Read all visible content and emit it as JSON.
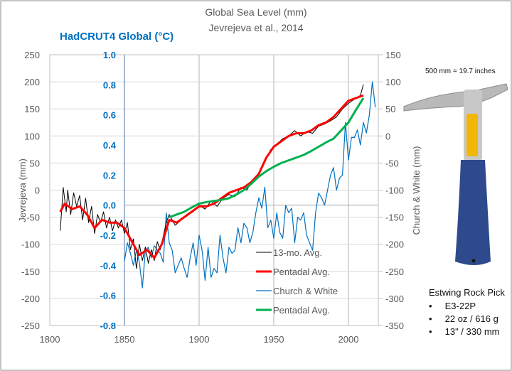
{
  "chart_data": {
    "type": "line",
    "title": "Global Sea Level (mm)",
    "subtitle": "Jevrejeva et al., 2014",
    "temp_axis_title": "HadCRUT4 Global (°C)",
    "ylabel_left": "Jevrejeva  (mm)",
    "ylabel_right": "Church & White (mm)",
    "xlim": [
      1800,
      2020
    ],
    "ylim_left": [
      -250,
      250
    ],
    "ylim_temp": [
      -0.8,
      1.0
    ],
    "ylim_right": [
      -350,
      150
    ],
    "x_ticks": [
      "1800",
      "1850",
      "1900",
      "1950",
      "2000"
    ],
    "y_ticks_left": [
      "250",
      "200",
      "150",
      "100",
      "50",
      "0",
      "-50",
      "-100",
      "-150",
      "-200",
      "-250"
    ],
    "y_ticks_temp": [
      "1.0",
      "0.8",
      "0.6",
      "0.4",
      "0.2",
      "0.0",
      "-0.2",
      "-0.4",
      "-0.6",
      "-0.8"
    ],
    "y_ticks_right": [
      "150",
      "100",
      "50",
      "0",
      "-50",
      "-100",
      "-150",
      "-200",
      "-250",
      "-300",
      "-350"
    ],
    "grid": true,
    "legend_position": "bottom-center",
    "series": [
      {
        "name": "13-mo. Avg.",
        "axis": "left",
        "color": "#000000",
        "x": [
          1807,
          1809,
          1811,
          1812,
          1814,
          1816,
          1818,
          1820,
          1822,
          1824,
          1826,
          1828,
          1830,
          1832,
          1834,
          1836,
          1838,
          1840,
          1842,
          1844,
          1846,
          1848,
          1850,
          1852,
          1854,
          1856,
          1858,
          1860,
          1862,
          1864,
          1866,
          1868,
          1870,
          1872,
          1874,
          1876,
          1878,
          1880,
          1884,
          1888,
          1892,
          1896,
          1900,
          1904,
          1908,
          1912,
          1916,
          1920,
          1924,
          1928,
          1932,
          1936,
          1940,
          1944,
          1948,
          1952,
          1956,
          1960,
          1964,
          1968,
          1972,
          1976,
          1980,
          1984,
          1988,
          1992,
          1996,
          2000,
          2004,
          2008,
          2010
        ],
        "y": [
          -75,
          5,
          -40,
          0,
          -45,
          -5,
          -30,
          -10,
          -55,
          -15,
          -60,
          -30,
          -80,
          -45,
          -60,
          -40,
          -70,
          -50,
          -75,
          -55,
          -70,
          -55,
          -80,
          -60,
          -110,
          -90,
          -145,
          -100,
          -130,
          -105,
          -135,
          -110,
          -130,
          -95,
          -110,
          -85,
          -60,
          -45,
          -65,
          -55,
          -45,
          -40,
          -28,
          -35,
          -20,
          -30,
          -15,
          -8,
          -12,
          5,
          0,
          20,
          30,
          55,
          75,
          85,
          95,
          100,
          110,
          100,
          108,
          105,
          118,
          122,
          128,
          135,
          150,
          160,
          168,
          175,
          195
        ]
      },
      {
        "name": "Pentadal Avg.",
        "axis": "left",
        "color": "#ff0000",
        "x": [
          1807,
          1810,
          1815,
          1820,
          1825,
          1830,
          1835,
          1840,
          1845,
          1850,
          1855,
          1860,
          1865,
          1870,
          1875,
          1880,
          1885,
          1890,
          1895,
          1900,
          1905,
          1910,
          1915,
          1920,
          1925,
          1930,
          1935,
          1940,
          1945,
          1950,
          1955,
          1960,
          1965,
          1970,
          1975,
          1980,
          1985,
          1990,
          1995,
          2000,
          2005,
          2010
        ],
        "y": [
          -40,
          -25,
          -35,
          -30,
          -45,
          -70,
          -55,
          -60,
          -60,
          -70,
          -95,
          -120,
          -110,
          -125,
          -100,
          -55,
          -60,
          -50,
          -40,
          -30,
          -30,
          -25,
          -15,
          -5,
          0,
          5,
          15,
          30,
          60,
          80,
          90,
          100,
          105,
          105,
          110,
          120,
          125,
          135,
          150,
          165,
          170,
          175
        ]
      },
      {
        "name": "Church & White",
        "axis": "temp",
        "color": "#0070c0",
        "x": [
          1850,
          1852,
          1854,
          1856,
          1858,
          1860,
          1862,
          1864,
          1866,
          1868,
          1870,
          1872,
          1874,
          1876,
          1878,
          1880,
          1882,
          1884,
          1886,
          1888,
          1890,
          1892,
          1894,
          1896,
          1898,
          1900,
          1902,
          1904,
          1906,
          1908,
          1910,
          1912,
          1914,
          1916,
          1918,
          1920,
          1922,
          1924,
          1926,
          1928,
          1930,
          1932,
          1934,
          1936,
          1938,
          1940,
          1942,
          1944,
          1946,
          1948,
          1950,
          1952,
          1954,
          1956,
          1958,
          1960,
          1962,
          1964,
          1966,
          1968,
          1970,
          1972,
          1974,
          1976,
          1978,
          1980,
          1982,
          1984,
          1986,
          1988,
          1990,
          1992,
          1994,
          1996,
          1998,
          2000,
          2002,
          2004,
          2006,
          2008,
          2010,
          2012,
          2014,
          2016,
          2018
        ],
        "y": [
          -0.37,
          -0.25,
          -0.32,
          -0.4,
          -0.3,
          -0.38,
          -0.55,
          -0.3,
          -0.28,
          -0.35,
          -0.27,
          -0.3,
          -0.32,
          -0.38,
          -0.05,
          -0.25,
          -0.3,
          -0.45,
          -0.4,
          -0.35,
          -0.42,
          -0.48,
          -0.35,
          -0.25,
          -0.4,
          -0.2,
          -0.3,
          -0.5,
          -0.28,
          -0.48,
          -0.42,
          -0.45,
          -0.2,
          -0.35,
          -0.45,
          -0.28,
          -0.32,
          -0.3,
          -0.15,
          -0.25,
          -0.12,
          -0.15,
          -0.25,
          -0.18,
          -0.05,
          0.05,
          -0.02,
          0.12,
          -0.15,
          -0.1,
          -0.22,
          -0.05,
          -0.18,
          -0.22,
          0.0,
          -0.05,
          -0.02,
          -0.25,
          -0.08,
          -0.1,
          -0.05,
          -0.2,
          -0.25,
          -0.3,
          -0.05,
          0.08,
          0.05,
          0.0,
          0.1,
          0.2,
          0.25,
          0.1,
          0.18,
          0.2,
          0.55,
          0.3,
          0.45,
          0.45,
          0.5,
          0.4,
          0.55,
          0.48,
          0.6,
          0.82,
          0.65
        ]
      },
      {
        "name": "Pentadal Avg.",
        "axis": "right",
        "color": "#00b050",
        "x": [
          1880,
          1885,
          1890,
          1895,
          1900,
          1905,
          1910,
          1915,
          1920,
          1925,
          1930,
          1935,
          1940,
          1945,
          1950,
          1955,
          1960,
          1965,
          1970,
          1975,
          1980,
          1985,
          1990,
          1995,
          2000,
          2005,
          2010
        ],
        "y": [
          -150,
          -145,
          -140,
          -132,
          -125,
          -122,
          -120,
          -118,
          -115,
          -108,
          -100,
          -88,
          -75,
          -65,
          -57,
          -50,
          -45,
          -40,
          -35,
          -28,
          -20,
          -12,
          -5,
          10,
          25,
          48,
          70
        ]
      }
    ]
  },
  "annotations": {
    "scale_note": "500 mm = 19.7 inches",
    "pick_title": "Estwing Rock Pick",
    "pick_specs": [
      "E3-22P",
      "22 oz / 616 g",
      "13\" / 330 mm"
    ],
    "pick_brand": "ESTWING"
  }
}
